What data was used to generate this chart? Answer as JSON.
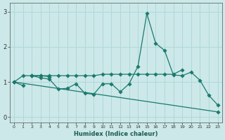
{
  "xlabel": "Humidex (Indice chaleur)",
  "xlim": [
    -0.5,
    23.5
  ],
  "ylim": [
    -0.15,
    3.25
  ],
  "yticks": [
    0,
    1,
    2,
    3
  ],
  "xticks": [
    0,
    1,
    2,
    3,
    4,
    5,
    6,
    7,
    8,
    9,
    10,
    11,
    12,
    13,
    14,
    15,
    16,
    17,
    18,
    19,
    20,
    21,
    22,
    23
  ],
  "bg_color": "#cce8e8",
  "line_color": "#1a7a6e",
  "grid_color": "#b0d8d8",
  "lines": [
    {
      "x": [
        0,
        1
      ],
      "y": [
        1.0,
        0.9
      ]
    },
    {
      "x": [
        2,
        3,
        4
      ],
      "y": [
        1.18,
        1.18,
        1.15
      ]
    },
    {
      "x": [
        2,
        3,
        4,
        5,
        6,
        7,
        8,
        9,
        10,
        11,
        12,
        13,
        14,
        15,
        16,
        17,
        18,
        19,
        20,
        21,
        22,
        23
      ],
      "y": [
        1.18,
        1.12,
        1.08,
        0.8,
        0.82,
        0.95,
        0.68,
        0.65,
        0.95,
        0.95,
        0.72,
        0.95,
        1.45,
        2.95,
        2.1,
        1.9,
        1.2,
        1.18,
        1.28,
        1.05,
        0.62,
        0.35
      ]
    },
    {
      "x": [
        0,
        1,
        2,
        3,
        4,
        5,
        6,
        7,
        8,
        9,
        10,
        11,
        12,
        13,
        14,
        15,
        16,
        17,
        18,
        19
      ],
      "y": [
        1.0,
        1.18,
        1.18,
        1.18,
        1.18,
        1.18,
        1.18,
        1.18,
        1.18,
        1.18,
        1.22,
        1.22,
        1.22,
        1.22,
        1.22,
        1.22,
        1.22,
        1.22,
        1.22,
        1.35
      ]
    },
    {
      "comment": "Declining diagonal from x=0 y=1.0 to x=23 y=0.15",
      "x": [
        0,
        23
      ],
      "y": [
        1.0,
        0.15
      ]
    }
  ]
}
